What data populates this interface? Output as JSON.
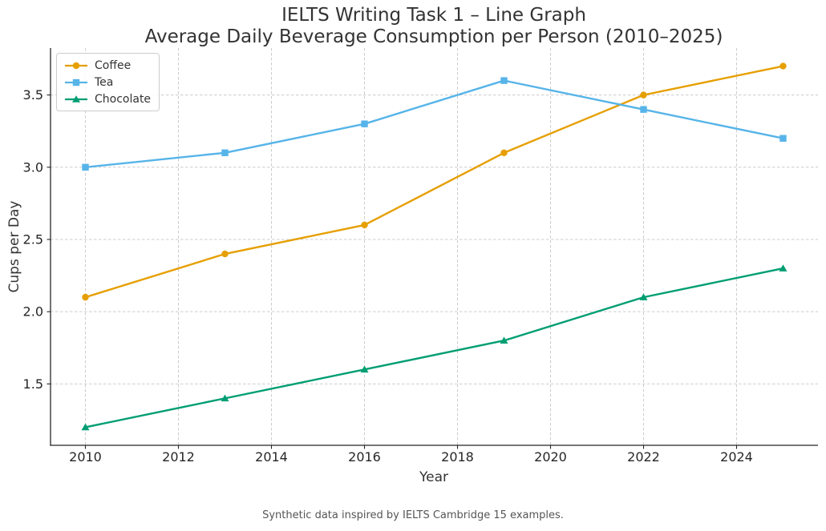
{
  "figure": {
    "title_line1": "IELTS Writing Task 1 – Line Graph",
    "title_line2": "Average Daily Beverage Consumption per Person (2010–2025)",
    "caption": "Synthetic data inspired by IELTS Cambridge 15 examples."
  },
  "chart_data": {
    "type": "line",
    "title": "IELTS Writing Task 1 – Line Graph\nAverage Daily Beverage Consumption per Person (2010–2025)",
    "xlabel": "Year",
    "ylabel": "Cups per Day",
    "x": [
      2010,
      2013,
      2016,
      2019,
      2022,
      2025
    ],
    "series": [
      {
        "name": "Coffee",
        "color": "#E69F00",
        "marker": "circle",
        "values": [
          2.1,
          2.4,
          2.6,
          3.1,
          3.5,
          3.7
        ]
      },
      {
        "name": "Tea",
        "color": "#56B4E9",
        "marker": "square",
        "values": [
          3.0,
          3.1,
          3.3,
          3.6,
          3.4,
          3.2
        ]
      },
      {
        "name": "Chocolate",
        "color": "#009E73",
        "marker": "triangle-up",
        "values": [
          1.2,
          1.4,
          1.6,
          1.8,
          2.1,
          2.3
        ]
      }
    ],
    "xlim": [
      2009.25,
      2025.75
    ],
    "ylim": [
      1.075,
      3.825
    ],
    "x_ticks": [
      2010,
      2012,
      2014,
      2016,
      2018,
      2020,
      2022,
      2024
    ],
    "x_tick_labels": [
      "2010",
      "2012",
      "2014",
      "2016",
      "2018",
      "2020",
      "2022",
      "2024"
    ],
    "y_ticks": [
      1.5,
      2.0,
      2.5,
      3.0,
      3.5
    ],
    "y_tick_labels": [
      "1.5",
      "2.0",
      "2.5",
      "3.0",
      "3.5"
    ],
    "grid": "dashed",
    "grid_on": true,
    "legend_position": "upper-left",
    "grid_color": "#cccccc",
    "spine_color": "#262626",
    "tick_label_color": "#262626",
    "caption": "Synthetic data inspired by IELTS Cambridge 15 examples."
  }
}
